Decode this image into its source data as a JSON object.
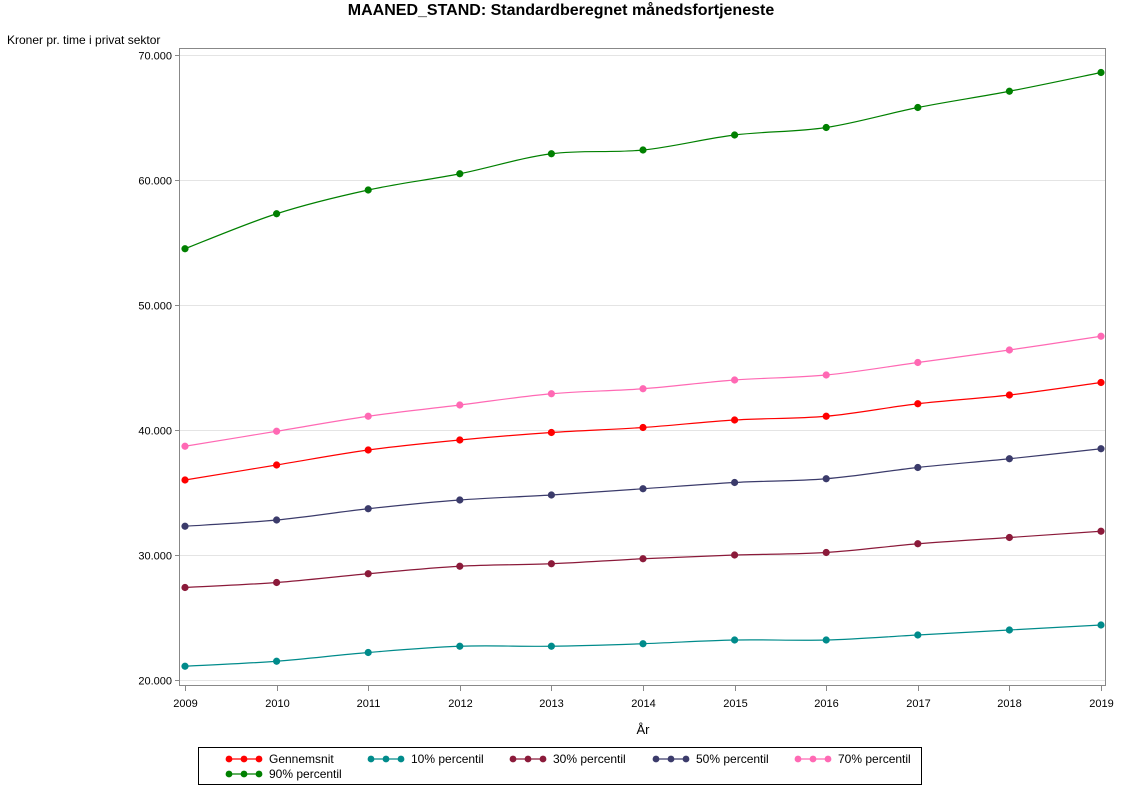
{
  "chart_data": {
    "type": "line",
    "title": "MAANED_STAND: Standardberegnet månedsfortjeneste",
    "ylabel": "Kroner pr. time i privat sektor",
    "xlabel": "År",
    "x": [
      2009,
      2010,
      2011,
      2012,
      2013,
      2014,
      2015,
      2016,
      2017,
      2018,
      2019
    ],
    "xlim": [
      2009,
      2019
    ],
    "ylim": [
      20000,
      70000
    ],
    "yticks": [
      20000,
      30000,
      40000,
      50000,
      60000,
      70000
    ],
    "ytick_labels": [
      "20.000",
      "30.000",
      "40.000",
      "50.000",
      "60.000",
      "70.000"
    ],
    "grid": "horizontal",
    "legend_position": "bottom",
    "series": [
      {
        "name": "Gennemsnit",
        "color": "#ff0000",
        "values": [
          36000,
          37200,
          38400,
          39200,
          39800,
          40200,
          40800,
          41100,
          42100,
          42800,
          43800
        ]
      },
      {
        "name": "10% percentil",
        "color": "#008b8b",
        "values": [
          21100,
          21500,
          22200,
          22700,
          22700,
          22900,
          23200,
          23200,
          23600,
          24000,
          24400
        ]
      },
      {
        "name": "30% percentil",
        "color": "#8b1a3a",
        "values": [
          27400,
          27800,
          28500,
          29100,
          29300,
          29700,
          30000,
          30200,
          30900,
          31400,
          31900
        ]
      },
      {
        "name": "50% percentil",
        "color": "#3b3b6b",
        "values": [
          32300,
          32800,
          33700,
          34400,
          34800,
          35300,
          35800,
          36100,
          37000,
          37700,
          38500
        ]
      },
      {
        "name": "70% percentil",
        "color": "#ff69b4",
        "values": [
          38700,
          39900,
          41100,
          42000,
          42900,
          43300,
          44000,
          44400,
          45400,
          46400,
          47500
        ]
      },
      {
        "name": "90% percentil",
        "color": "#008000",
        "values": [
          54500,
          57300,
          59200,
          60500,
          62100,
          62400,
          63600,
          64200,
          65800,
          67100,
          68600
        ]
      }
    ]
  }
}
